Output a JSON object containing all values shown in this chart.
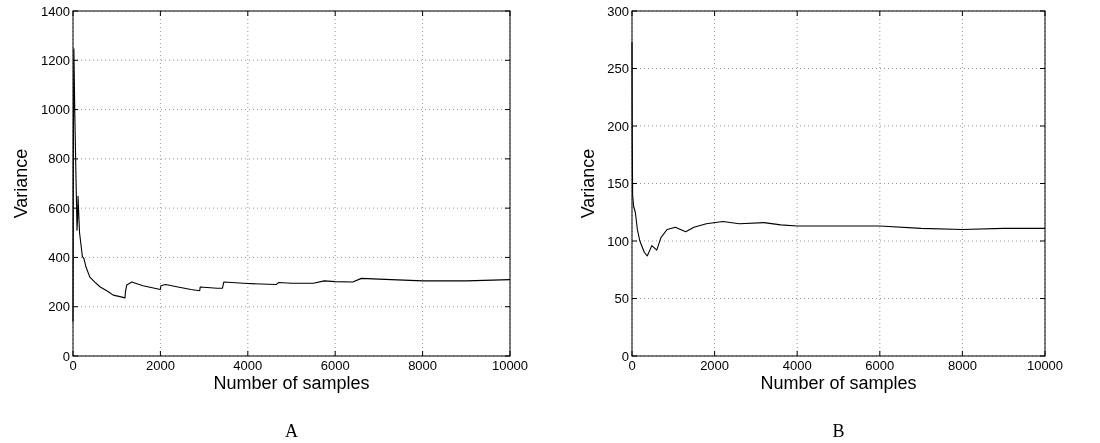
{
  "chart_data": [
    {
      "type": "line",
      "title": "A",
      "xlabel": "Number of samples",
      "ylabel": "Variance",
      "xlim": [
        0,
        10000
      ],
      "ylim": [
        0,
        1400
      ],
      "xticks": [
        0,
        2000,
        4000,
        6000,
        8000,
        10000
      ],
      "yticks": [
        0,
        200,
        400,
        600,
        800,
        1000,
        1200,
        1400
      ],
      "grid": true,
      "line_style": "solid",
      "series": [
        {
          "color": "#000000",
          "x": [
            0,
            10,
            20,
            40,
            60,
            92,
            105,
            115,
            150,
            215,
            250,
            300,
            385,
            500,
            615,
            800,
            920,
            1100,
            1190,
            1200,
            1230,
            1346,
            1600,
            2000,
            2010,
            2120,
            2400,
            2700,
            2900,
            2910,
            3300,
            3420,
            3450,
            3900,
            4300,
            4650,
            4700,
            5000,
            5500,
            5750,
            6000,
            6400,
            6600,
            7000,
            8000,
            9000,
            10000
          ],
          "values": [
            139,
            900,
            1247,
            1000,
            800,
            510,
            560,
            648,
            500,
            403,
            395,
            360,
            320,
            300,
            281,
            262,
            247,
            240,
            236,
            260,
            288,
            300,
            285,
            270,
            285,
            290,
            280,
            270,
            265,
            280,
            275,
            275,
            300,
            295,
            292,
            290,
            298,
            295,
            295,
            305,
            302,
            300,
            315,
            312,
            305,
            305,
            310
          ]
        }
      ]
    },
    {
      "type": "line",
      "title": "B",
      "xlabel": "Number of samples",
      "ylabel": "Variance",
      "xlim": [
        0,
        10000
      ],
      "ylim": [
        0,
        300
      ],
      "xticks": [
        0,
        2000,
        4000,
        6000,
        8000,
        10000
      ],
      "yticks": [
        0,
        50,
        100,
        150,
        200,
        250,
        300
      ],
      "grid": true,
      "line_style": "solid",
      "series": [
        {
          "color": "#000000",
          "x": [
            0,
            5,
            15,
            40,
            80,
            130,
            190,
            300,
            370,
            480,
            600,
            700,
            850,
            1050,
            1300,
            1500,
            1800,
            2200,
            2600,
            3200,
            3600,
            4000,
            5000,
            6000,
            7000,
            8000,
            9000,
            10000
          ],
          "values": [
            273,
            200,
            140,
            130,
            125,
            110,
            100,
            90,
            87,
            96,
            92,
            103,
            110,
            112,
            108,
            112,
            115,
            117,
            115,
            116,
            114,
            113,
            113,
            113,
            111,
            110,
            111,
            111
          ]
        }
      ]
    }
  ]
}
